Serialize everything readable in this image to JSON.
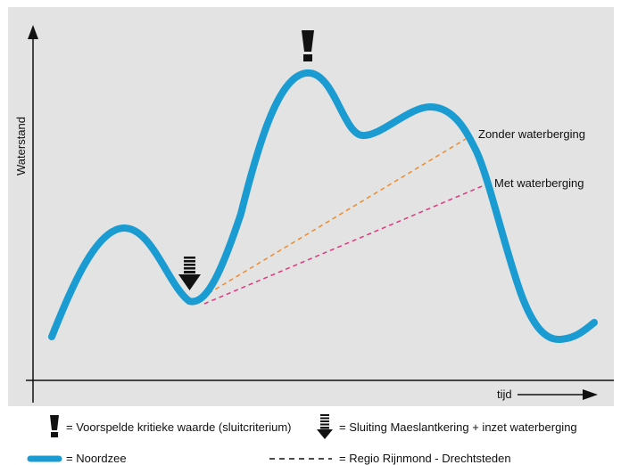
{
  "diagram": {
    "y_axis_label": "Waterstand",
    "x_axis_label": "tijd",
    "line_labels": {
      "zonder": "Zonder waterberging",
      "met": "Met waterberging"
    },
    "legend": {
      "critical": "= Voorspelde kritieke waarde (sluitcriterium)",
      "closure": "= Sluiting Maeslantkering + inzet waterberging",
      "noordzee": "= Noordzee",
      "regio": "= Regio Rijnmond - Drechtsteden"
    }
  },
  "colors": {
    "plot_background": "#e3e3e3",
    "noordzee_line": "#1a9bd1",
    "zonder_dashed": "#f08a2c",
    "met_dashed": "#e0367f",
    "axis": "#111111"
  },
  "icons": {
    "critical": "exclamation-icon",
    "closure": "arrow-down-icon"
  }
}
